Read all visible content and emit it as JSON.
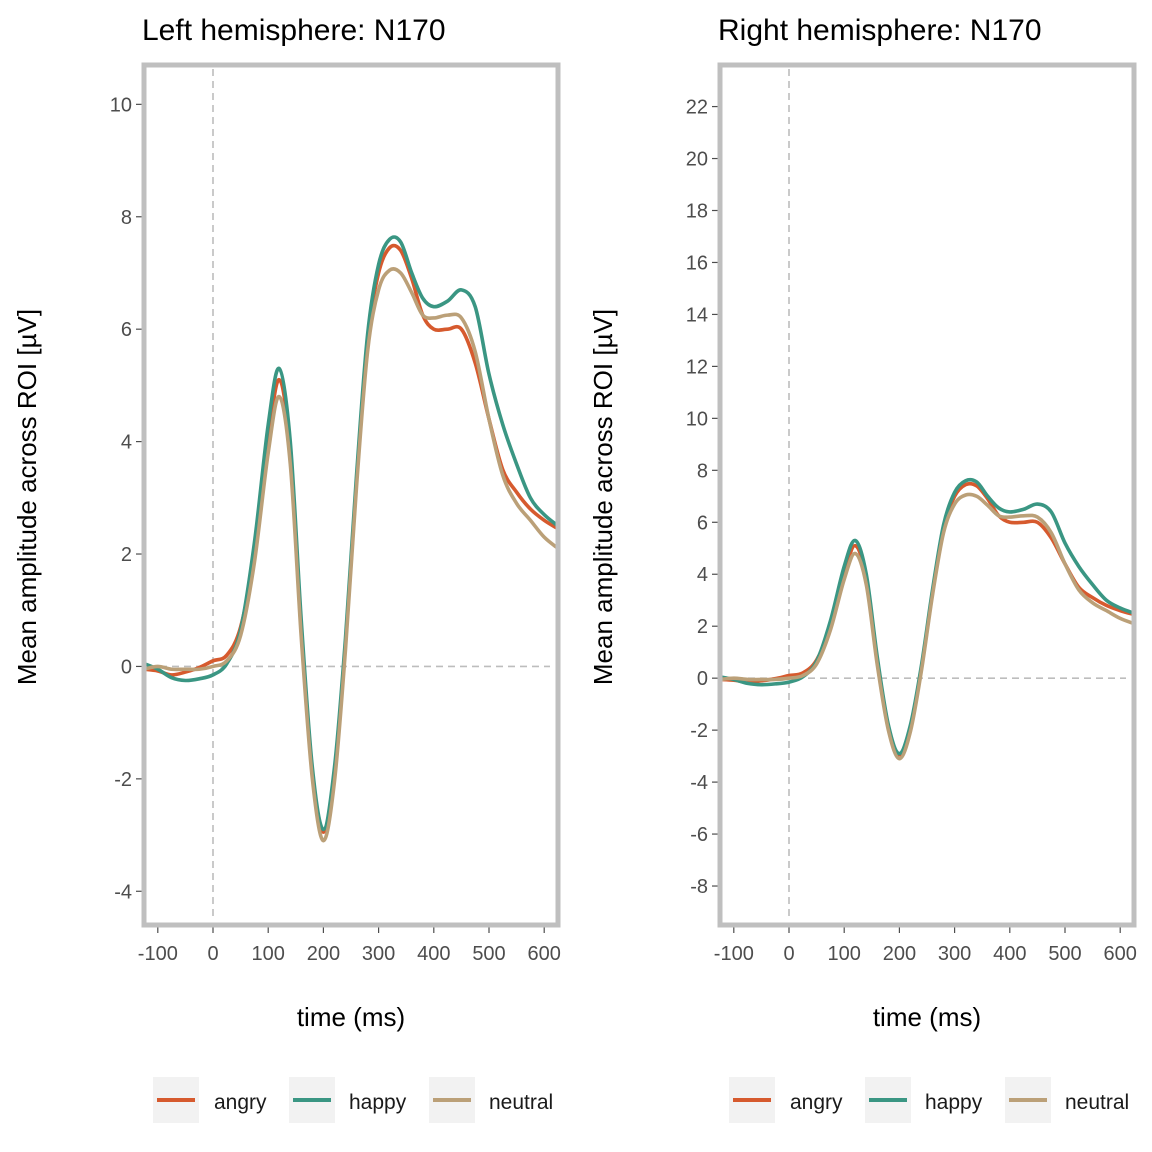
{
  "chart_data": [
    {
      "type": "line",
      "title": "Left hemisphere: N170",
      "xlabel": "time (ms)",
      "ylabel": "Mean amplitude across ROI [µV]",
      "xlim": [
        -125,
        625
      ],
      "ylim": [
        -4.6,
        10.7
      ],
      "xticks": [
        -100,
        0,
        100,
        200,
        300,
        400,
        500,
        600
      ],
      "xtick_labels": [
        "-100",
        "0",
        "100",
        "200",
        "300",
        "400",
        "500",
        "600"
      ],
      "yticks": [
        -4,
        -2,
        0,
        2,
        4,
        6,
        8,
        10
      ],
      "ytick_labels": [
        "-4",
        "-2",
        "0",
        "2",
        "4",
        "6",
        "8",
        "10"
      ],
      "reference_lines": {
        "x": 0,
        "y": 0
      },
      "grid": false,
      "legend_position": "bottom",
      "x": [
        -125,
        -100,
        -75,
        -50,
        -25,
        0,
        25,
        50,
        75,
        100,
        120,
        140,
        160,
        180,
        200,
        220,
        240,
        260,
        280,
        300,
        320,
        340,
        360,
        380,
        400,
        425,
        450,
        475,
        500,
        525,
        550,
        575,
        600,
        625
      ],
      "series": [
        {
          "name": "angry",
          "color": "#D65A2E",
          "values": [
            -0.05,
            -0.08,
            -0.15,
            -0.1,
            -0.02,
            0.1,
            0.2,
            0.7,
            2.0,
            4.0,
            5.1,
            3.8,
            0.6,
            -1.9,
            -2.95,
            -1.9,
            0.4,
            3.3,
            5.8,
            7.0,
            7.45,
            7.4,
            6.9,
            6.25,
            6.0,
            6.0,
            6.0,
            5.4,
            4.4,
            3.5,
            3.1,
            2.8,
            2.6,
            2.45
          ]
        },
        {
          "name": "happy",
          "color": "#3A9683",
          "values": [
            0.05,
            -0.05,
            -0.2,
            -0.25,
            -0.22,
            -0.15,
            0.05,
            0.65,
            2.2,
            4.3,
            5.3,
            4.0,
            0.8,
            -1.8,
            -2.9,
            -1.8,
            0.5,
            3.4,
            5.9,
            7.15,
            7.6,
            7.55,
            7.0,
            6.55,
            6.4,
            6.5,
            6.7,
            6.4,
            5.2,
            4.3,
            3.6,
            3.0,
            2.7,
            2.5
          ]
        },
        {
          "name": "neutral",
          "color": "#BBA078",
          "values": [
            -0.05,
            0.0,
            -0.05,
            -0.05,
            -0.05,
            0.0,
            0.1,
            0.55,
            1.85,
            3.8,
            4.8,
            3.6,
            0.5,
            -2.0,
            -3.1,
            -2.05,
            0.3,
            3.2,
            5.6,
            6.7,
            7.05,
            7.0,
            6.65,
            6.25,
            6.2,
            6.25,
            6.2,
            5.6,
            4.4,
            3.4,
            2.9,
            2.6,
            2.3,
            2.1
          ]
        }
      ]
    },
    {
      "type": "line",
      "title": "Right hemisphere: N170",
      "xlabel": "time (ms)",
      "ylabel": "Mean amplitude across ROI [µV]",
      "xlim": [
        -125,
        625
      ],
      "ylim": [
        -9.5,
        23.6
      ],
      "xticks": [
        -100,
        0,
        100,
        200,
        300,
        400,
        500,
        600
      ],
      "xtick_labels": [
        "-100",
        "0",
        "100",
        "200",
        "300",
        "400",
        "500",
        "600"
      ],
      "yticks": [
        -8,
        -6,
        -4,
        -2,
        0,
        2,
        4,
        6,
        8,
        10,
        12,
        14,
        16,
        18,
        20,
        22
      ],
      "ytick_labels": [
        "-8",
        "-6",
        "-4",
        "-2",
        "0",
        "2",
        "4",
        "6",
        "8",
        "10",
        "12",
        "14",
        "16",
        "18",
        "20",
        "22"
      ],
      "reference_lines": {
        "x": 0,
        "y": 0
      },
      "grid": false,
      "legend_position": "bottom",
      "x": [
        -125,
        -100,
        -75,
        -50,
        -25,
        0,
        25,
        50,
        75,
        100,
        120,
        140,
        160,
        180,
        200,
        220,
        240,
        260,
        280,
        300,
        320,
        340,
        360,
        380,
        400,
        425,
        450,
        475,
        500,
        525,
        550,
        575,
        600,
        625
      ],
      "series": [
        {
          "name": "angry",
          "color": "#D65A2E",
          "values": [
            -0.05,
            -0.08,
            -0.15,
            -0.1,
            -0.02,
            0.1,
            0.2,
            0.7,
            2.0,
            4.0,
            5.1,
            3.8,
            0.6,
            -1.9,
            -2.95,
            -1.9,
            0.4,
            3.3,
            5.8,
            7.0,
            7.45,
            7.4,
            6.9,
            6.25,
            6.0,
            6.0,
            6.0,
            5.4,
            4.4,
            3.5,
            3.1,
            2.8,
            2.6,
            2.45
          ]
        },
        {
          "name": "happy",
          "color": "#3A9683",
          "values": [
            0.05,
            -0.05,
            -0.2,
            -0.25,
            -0.22,
            -0.15,
            0.05,
            0.65,
            2.2,
            4.3,
            5.3,
            4.0,
            0.8,
            -1.8,
            -2.9,
            -1.8,
            0.5,
            3.4,
            5.9,
            7.15,
            7.6,
            7.55,
            7.0,
            6.55,
            6.4,
            6.5,
            6.7,
            6.4,
            5.2,
            4.3,
            3.6,
            3.0,
            2.7,
            2.5
          ]
        },
        {
          "name": "neutral",
          "color": "#BBA078",
          "values": [
            -0.05,
            0.0,
            -0.05,
            -0.05,
            -0.05,
            0.0,
            0.1,
            0.55,
            1.85,
            3.8,
            4.8,
            3.6,
            0.5,
            -2.0,
            -3.1,
            -2.05,
            0.3,
            3.2,
            5.6,
            6.7,
            7.05,
            7.0,
            6.65,
            6.25,
            6.2,
            6.25,
            6.2,
            5.6,
            4.4,
            3.4,
            2.9,
            2.6,
            2.3,
            2.1
          ]
        }
      ]
    }
  ]
}
